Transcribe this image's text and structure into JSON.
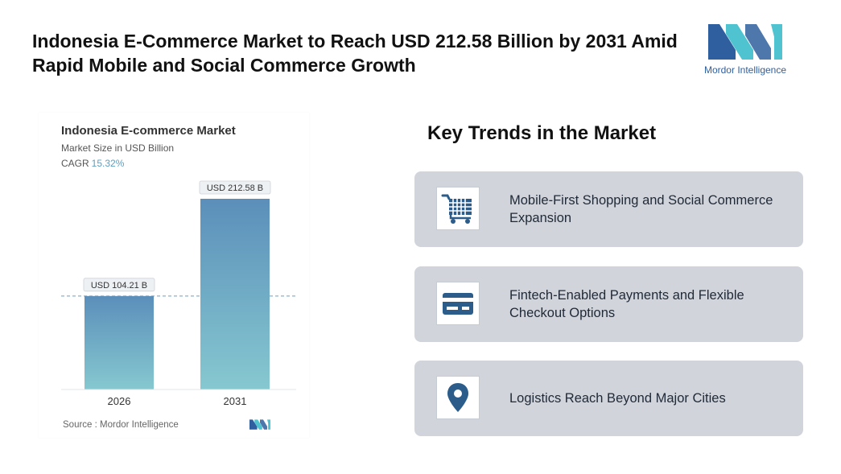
{
  "header": {
    "title": "Indonesia E-Commerce Market to Reach USD 212.58 Billion by 2031 Amid Rapid Mobile and Social Commerce Growth"
  },
  "logo": {
    "text": "Mordor Intelligence"
  },
  "colors": {
    "accent": "#5c9fc1",
    "bar_top": "#5b8fba",
    "bar_bottom": "#86c8d0",
    "logo_dark": "#2f5f9e",
    "logo_light": "#4fc3cf",
    "card_bg": "#d1d5db",
    "icon_color": "#2c5d8a"
  },
  "chart_data": {
    "type": "bar",
    "title": "Indonesia E-commerce Market",
    "subtitle": "Market Size in USD Billion",
    "cagr_label": "CAGR",
    "cagr_value": "15.32%",
    "categories": [
      "2026",
      "2031"
    ],
    "values": [
      104.21,
      212.58
    ],
    "data_labels": [
      "USD 104.21 B",
      "USD 212.58 B"
    ],
    "xlabel": "",
    "ylabel": "",
    "ylim": [
      0,
      212.58
    ],
    "grid": false,
    "reference_line": "dashed line at the 2026 value",
    "source": "Source : Mordor Intelligence"
  },
  "trends": {
    "title": "Key Trends in the Market",
    "items": [
      {
        "label": "Mobile-First Shopping and Social Commerce Expansion",
        "icon": "shopping-cart-icon"
      },
      {
        "label": "Fintech-Enabled Payments and Flexible Checkout Options",
        "icon": "credit-card-icon"
      },
      {
        "label": "Logistics Reach Beyond Major Cities",
        "icon": "location-pin-icon"
      }
    ]
  }
}
